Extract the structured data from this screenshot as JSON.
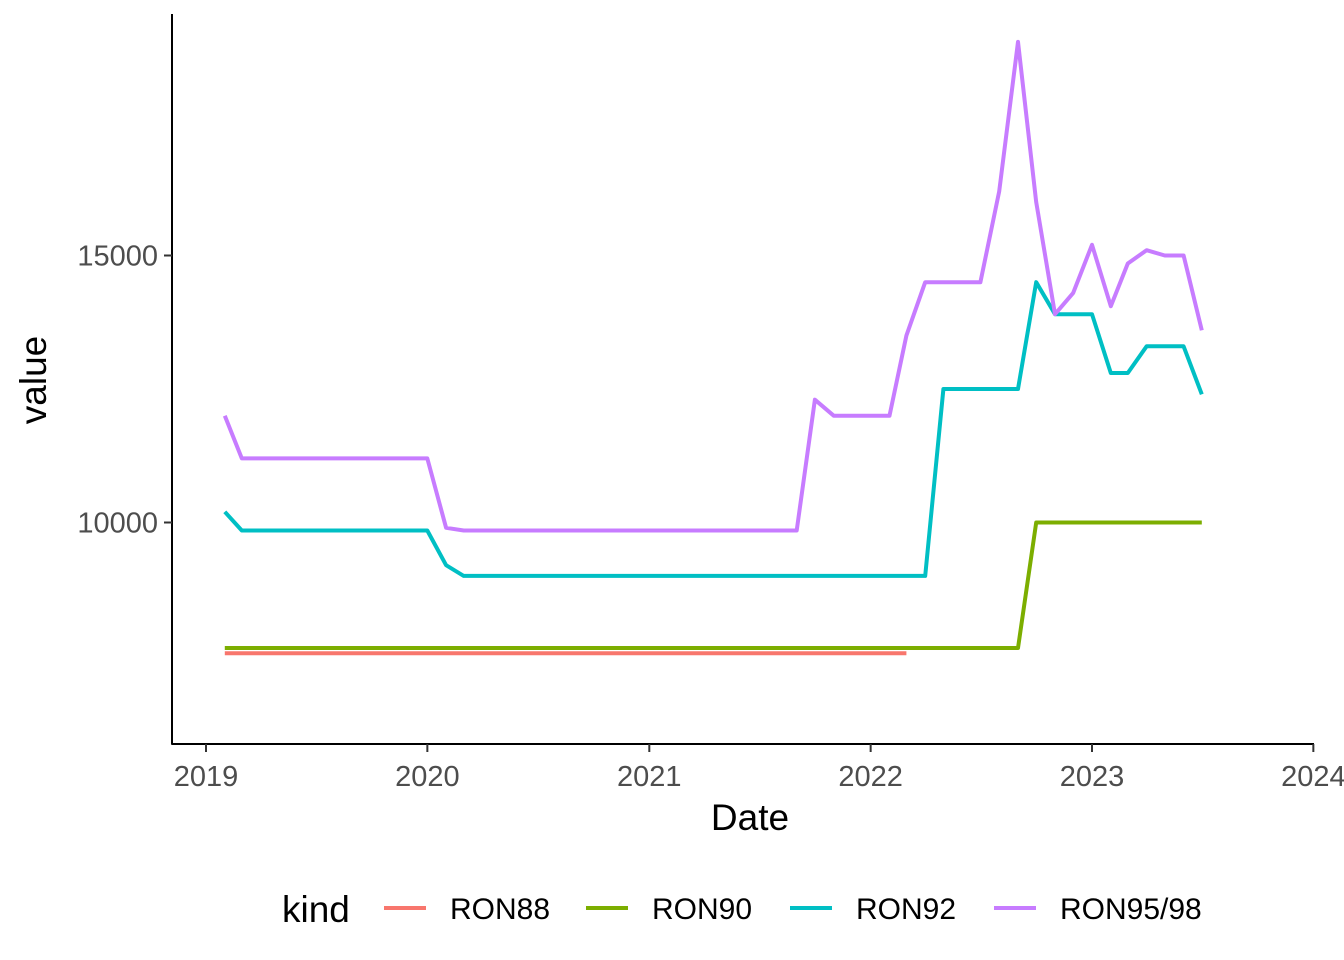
{
  "chart_data": {
    "type": "line",
    "xlabel": "Date",
    "ylabel": "value",
    "x_ticks": [
      "2019",
      "2020",
      "2021",
      "2022",
      "2023",
      "2024"
    ],
    "y_ticks": [
      "10000",
      "15000"
    ],
    "xlim": [
      "2018-12-01",
      "2024-01-01"
    ],
    "ylim": [
      6000,
      19500
    ],
    "grid": false,
    "legend": {
      "title": "kind",
      "position": "bottom"
    },
    "series": [
      {
        "name": "RON88",
        "color": "#F8766D",
        "points": [
          [
            "2019-02-01",
            7550
          ],
          [
            "2022-03-01",
            7550
          ]
        ]
      },
      {
        "name": "RON90",
        "color": "#7CAE00",
        "points": [
          [
            "2019-02-01",
            7650
          ],
          [
            "2022-09-01",
            7650
          ],
          [
            "2022-10-01",
            10000
          ],
          [
            "2023-07-01",
            10000
          ]
        ]
      },
      {
        "name": "RON92",
        "color": "#00BFC4",
        "points": [
          [
            "2019-02-01",
            10200
          ],
          [
            "2019-03-01",
            9850
          ],
          [
            "2020-01-01",
            9850
          ],
          [
            "2020-02-01",
            9200
          ],
          [
            "2020-03-01",
            9000
          ],
          [
            "2022-04-01",
            9000
          ],
          [
            "2022-05-01",
            12500
          ],
          [
            "2022-09-01",
            12500
          ],
          [
            "2022-10-01",
            14500
          ],
          [
            "2022-11-01",
            13900
          ],
          [
            "2023-01-01",
            13900
          ],
          [
            "2023-02-01",
            12800
          ],
          [
            "2023-03-01",
            12800
          ],
          [
            "2023-04-01",
            13300
          ],
          [
            "2023-06-01",
            13300
          ],
          [
            "2023-07-01",
            12400
          ]
        ]
      },
      {
        "name": "RON95/98",
        "color": "#C77CFF",
        "points": [
          [
            "2019-02-01",
            12000
          ],
          [
            "2019-03-01",
            11200
          ],
          [
            "2020-01-01",
            11200
          ],
          [
            "2020-02-01",
            9900
          ],
          [
            "2020-03-01",
            9850
          ],
          [
            "2021-09-01",
            9850
          ],
          [
            "2021-10-01",
            12300
          ],
          [
            "2021-11-01",
            12000
          ],
          [
            "2022-02-01",
            12000
          ],
          [
            "2022-03-01",
            13500
          ],
          [
            "2022-04-01",
            14500
          ],
          [
            "2022-07-01",
            14500
          ],
          [
            "2022-08-01",
            16200
          ],
          [
            "2022-09-01",
            19000
          ],
          [
            "2022-10-01",
            16000
          ],
          [
            "2022-11-01",
            13900
          ],
          [
            "2022-12-01",
            14300
          ],
          [
            "2023-01-01",
            15200
          ],
          [
            "2023-02-01",
            14050
          ],
          [
            "2023-03-01",
            14850
          ],
          [
            "2023-04-01",
            15100
          ],
          [
            "2023-05-01",
            15000
          ],
          [
            "2023-06-01",
            15000
          ],
          [
            "2023-07-01",
            13600
          ]
        ]
      }
    ]
  }
}
